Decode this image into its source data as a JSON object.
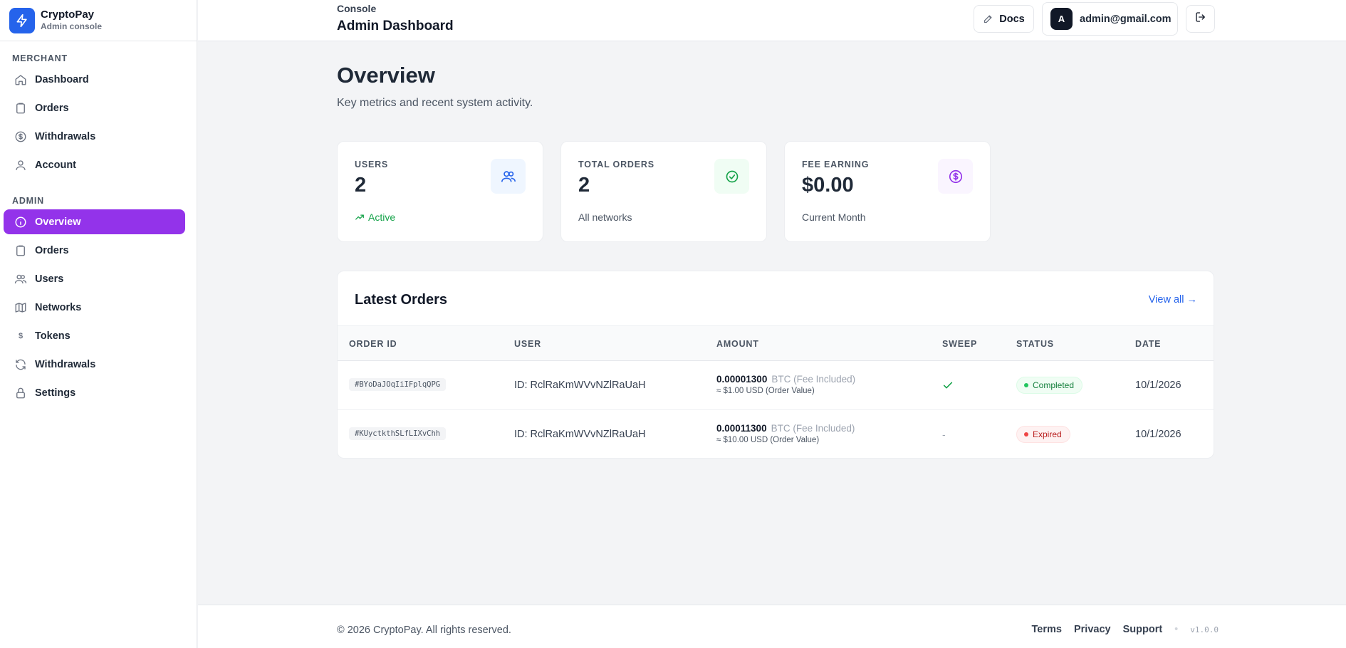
{
  "brand": {
    "name": "CryptoPay",
    "subtitle": "Admin console"
  },
  "sidebar": {
    "merchant_label": "MERCHANT",
    "merchant_items": [
      {
        "label": "Dashboard",
        "icon": "home-icon"
      },
      {
        "label": "Orders",
        "icon": "clipboard-icon"
      },
      {
        "label": "Withdrawals",
        "icon": "dollar-circle-icon"
      },
      {
        "label": "Account",
        "icon": "user-icon"
      }
    ],
    "admin_label": "ADMIN",
    "admin_items": [
      {
        "label": "Overview",
        "icon": "info-icon",
        "active": true
      },
      {
        "label": "Orders",
        "icon": "clipboard-icon"
      },
      {
        "label": "Users",
        "icon": "users-icon"
      },
      {
        "label": "Networks",
        "icon": "map-icon"
      },
      {
        "label": "Tokens",
        "icon": "dollar-icon"
      },
      {
        "label": "Withdrawals",
        "icon": "refresh-icon"
      },
      {
        "label": "Settings",
        "icon": "lock-icon"
      }
    ]
  },
  "header": {
    "eyebrow": "Console",
    "title": "Admin Dashboard",
    "docs_label": "Docs",
    "avatar_letter": "A",
    "user_email": "admin@gmail.com"
  },
  "page": {
    "title": "Overview",
    "subtitle": "Key metrics and recent system activity."
  },
  "stats": [
    {
      "label": "USERS",
      "value": "2",
      "footer": "Active",
      "icon": "users-icon",
      "accent": "#2563eb"
    },
    {
      "label": "TOTAL ORDERS",
      "value": "2",
      "footer": "All networks",
      "icon": "check-circle-icon",
      "accent": "#16a34a"
    },
    {
      "label": "FEE EARNING",
      "value": "$0.00",
      "footer": "Current Month",
      "icon": "dollar-circle-icon",
      "accent": "#9333ea"
    }
  ],
  "orders": {
    "title": "Latest Orders",
    "view_all": "View all →",
    "columns": [
      "ORDER ID",
      "USER",
      "AMOUNT",
      "SWEEP",
      "STATUS",
      "DATE"
    ],
    "rows": [
      {
        "order_id": "#BYoDaJOqIiIFplqQPG",
        "user": "ID: RclRaKmWVvNZlRaUaH",
        "amount": "0.00001300",
        "unit": "BTC (Fee Included)",
        "usd": "≈ $1.00 USD (Order Value)",
        "sweep": "✓",
        "status": "Completed",
        "date": "10/1/2026"
      },
      {
        "order_id": "#KUyctkthSLfLIXvChh",
        "user": "ID: RclRaKmWVvNZlRaUaH",
        "amount": "0.00011300",
        "unit": "BTC (Fee Included)",
        "usd": "≈ $10.00 USD (Order Value)",
        "sweep": "-",
        "status": "Expired",
        "date": "10/1/2026"
      }
    ]
  },
  "footer": {
    "copyright": "© 2026 CryptoPay. All rights reserved.",
    "links": [
      "Terms",
      "Privacy",
      "Support"
    ],
    "separator": "•",
    "version": "v1.0.0"
  },
  "colors": {
    "brand": "#2563eb",
    "active_nav": "#9333ea",
    "success": "#16a34a",
    "danger": "#dc2626"
  }
}
